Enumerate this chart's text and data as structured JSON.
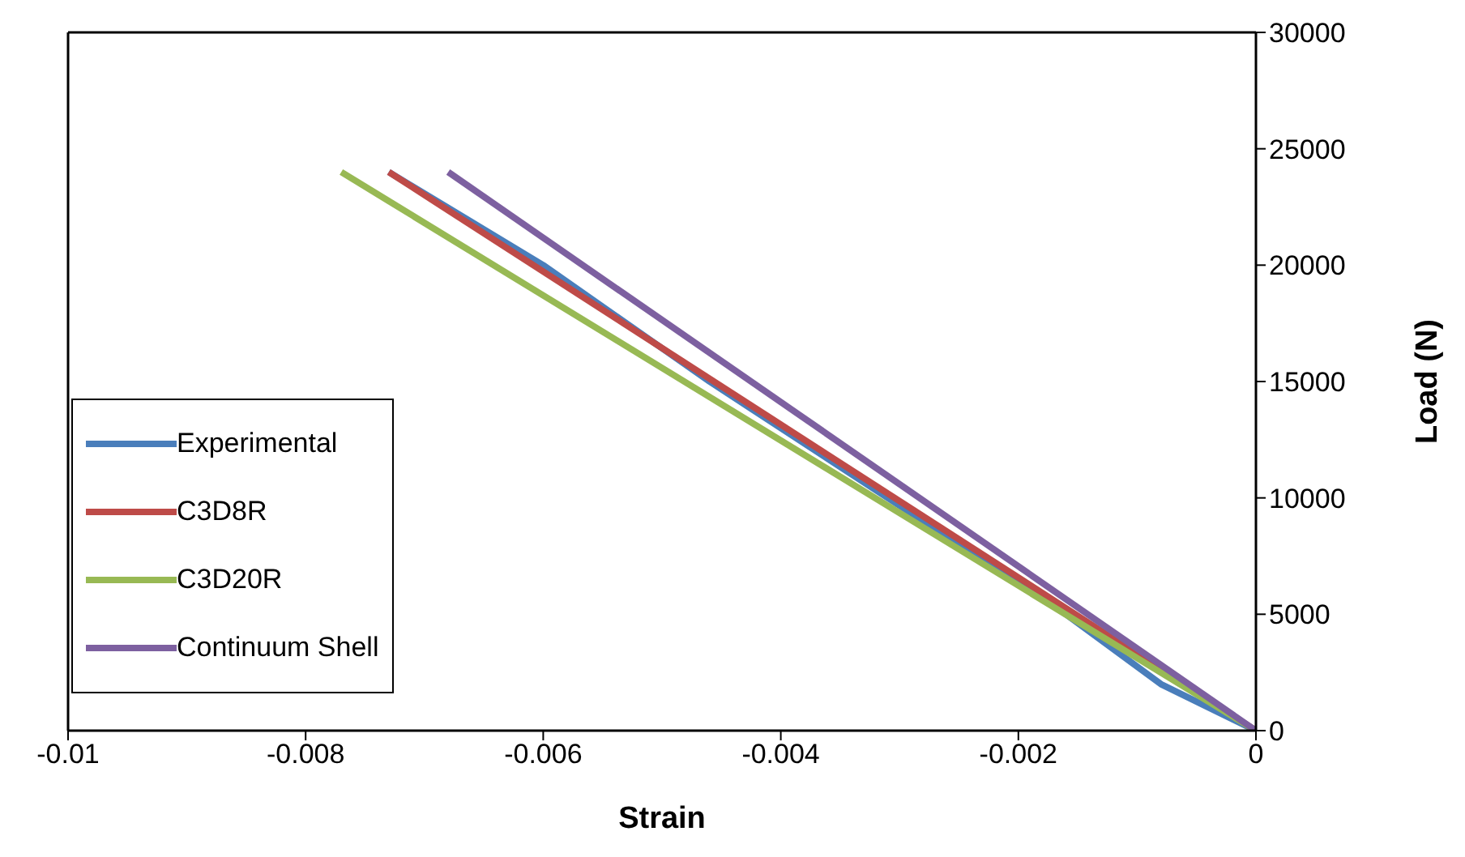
{
  "chart_data": {
    "type": "line",
    "xlabel": "Strain",
    "ylabel": "Load (N)",
    "xlim": [
      -0.01,
      0
    ],
    "xticks": [
      -0.01,
      -0.008,
      -0.006,
      -0.004,
      -0.002,
      0
    ],
    "ylim": [
      0,
      30000
    ],
    "yticks": [
      0,
      5000,
      10000,
      15000,
      20000,
      25000,
      30000
    ],
    "grid": false,
    "legend": "bottom left",
    "marker": "none",
    "line_style": "solid",
    "series": [
      {
        "name": "Experimental",
        "color": "#4a7ebb",
        "x": [
          0,
          -0.0008,
          -0.0016,
          -0.0031,
          -0.0046,
          -0.006,
          -0.0073
        ],
        "values": [
          0,
          2000,
          5000,
          10000,
          15000,
          20000,
          24000
        ]
      },
      {
        "name": "C3D8R",
        "color": "#be4b48",
        "x": [
          0,
          -0.0073
        ],
        "values": [
          0,
          24000
        ]
      },
      {
        "name": "C3D20R",
        "color": "#98b954",
        "x": [
          0,
          -0.0077
        ],
        "values": [
          0,
          24000
        ]
      },
      {
        "name": "Continuum Shell",
        "color": "#7d60a0",
        "x": [
          0,
          -0.0068
        ],
        "values": [
          0,
          24000
        ]
      }
    ]
  }
}
